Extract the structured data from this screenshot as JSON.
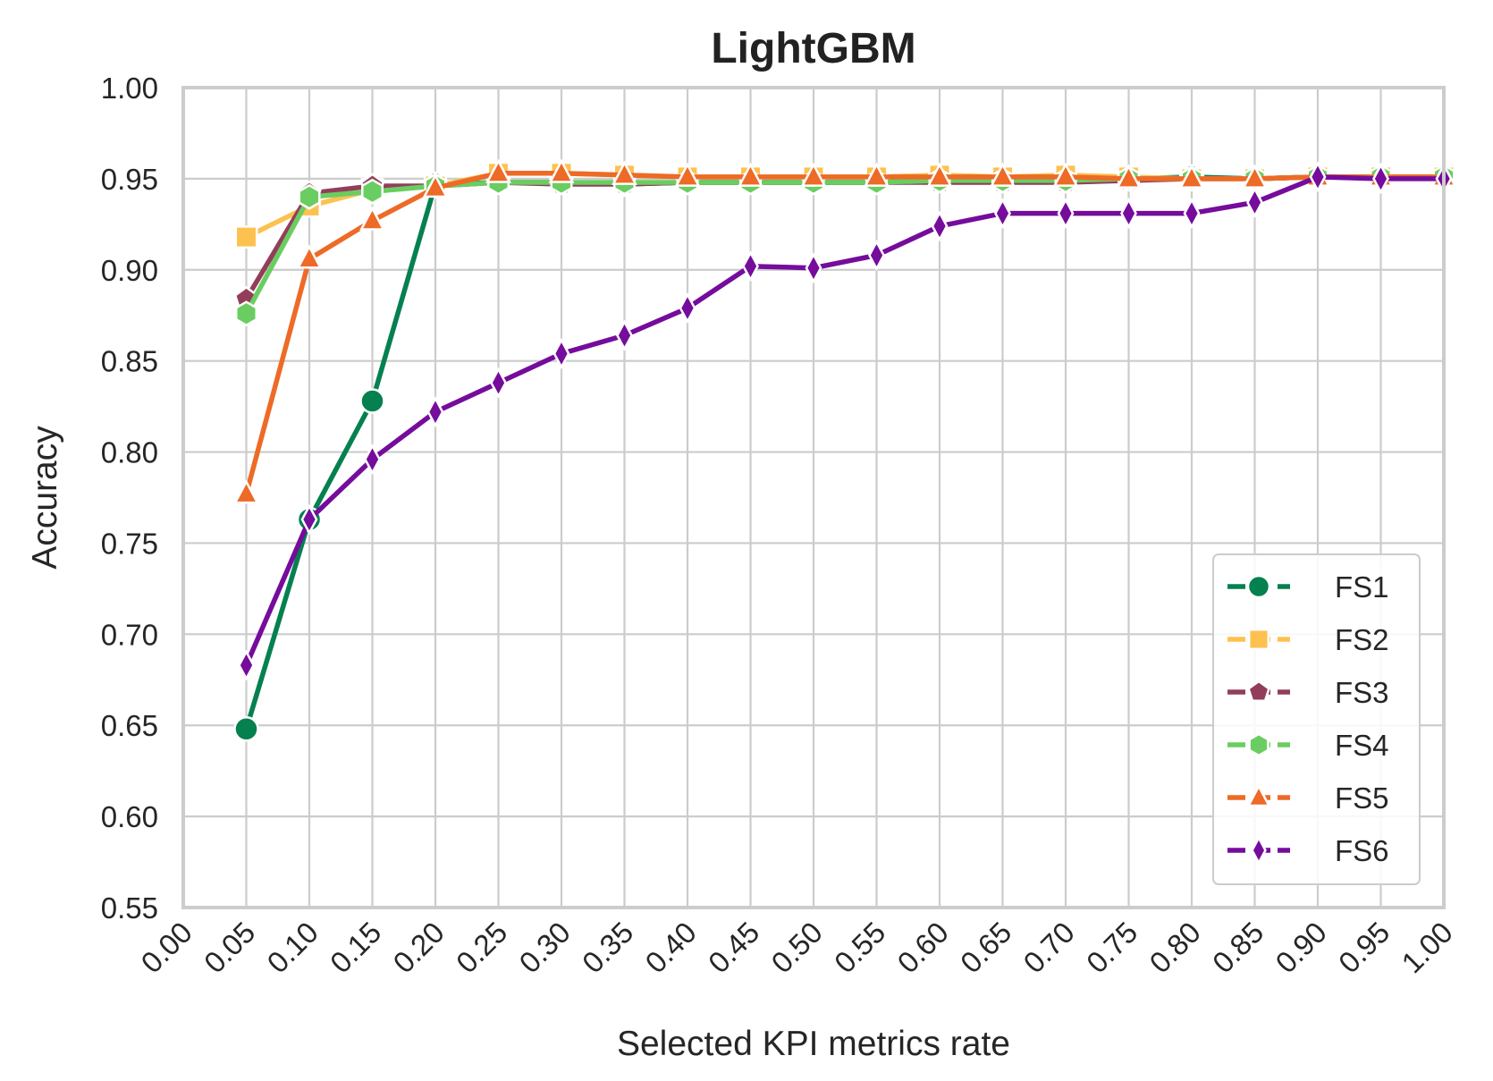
{
  "chart_data": {
    "type": "line",
    "title": "LightGBM",
    "xlabel": "Selected KPI metrics rate",
    "ylabel": "Accuracy",
    "xlim": [
      0.0,
      1.0
    ],
    "ylim": [
      0.55,
      1.0
    ],
    "x_ticks": [
      "0.00",
      "0.05",
      "0.10",
      "0.15",
      "0.20",
      "0.25",
      "0.30",
      "0.35",
      "0.40",
      "0.45",
      "0.50",
      "0.55",
      "0.60",
      "0.65",
      "0.70",
      "0.75",
      "0.80",
      "0.85",
      "0.90",
      "0.95",
      "1.00"
    ],
    "y_ticks": [
      "0.55",
      "0.60",
      "0.65",
      "0.70",
      "0.75",
      "0.80",
      "0.85",
      "0.90",
      "0.95",
      "1.00"
    ],
    "grid": true,
    "legend_position": "lower-right",
    "x": [
      0.05,
      0.1,
      0.15,
      0.2,
      0.25,
      0.3,
      0.35,
      0.4,
      0.45,
      0.5,
      0.55,
      0.6,
      0.65,
      0.7,
      0.75,
      0.8,
      0.85,
      0.9,
      0.95,
      1.0
    ],
    "series": [
      {
        "name": "FS1",
        "color": "#05804f",
        "marker": "circle",
        "values": [
          0.648,
          0.763,
          0.828,
          0.947,
          0.948,
          0.948,
          0.947,
          0.948,
          0.948,
          0.948,
          0.948,
          0.949,
          0.949,
          0.949,
          0.95,
          0.951,
          0.95,
          0.951,
          0.951,
          0.951
        ]
      },
      {
        "name": "FS2",
        "color": "#fdc150",
        "marker": "square",
        "values": [
          0.918,
          0.935,
          0.944,
          0.946,
          0.953,
          0.953,
          0.952,
          0.951,
          0.951,
          0.951,
          0.951,
          0.952,
          0.951,
          0.952,
          0.951,
          0.95,
          0.95,
          0.951,
          0.951,
          0.951
        ]
      },
      {
        "name": "FS3",
        "color": "#923e5b",
        "marker": "pentagon",
        "values": [
          0.884,
          0.942,
          0.946,
          0.946,
          0.948,
          0.947,
          0.947,
          0.948,
          0.948,
          0.948,
          0.948,
          0.948,
          0.948,
          0.948,
          0.949,
          0.95,
          0.95,
          0.951,
          0.951,
          0.951
        ]
      },
      {
        "name": "FS4",
        "color": "#6acd61",
        "marker": "hexagon",
        "values": [
          0.876,
          0.94,
          0.943,
          0.946,
          0.948,
          0.948,
          0.948,
          0.948,
          0.948,
          0.948,
          0.948,
          0.949,
          0.949,
          0.949,
          0.95,
          0.95,
          0.95,
          0.951,
          0.951,
          0.951
        ]
      },
      {
        "name": "FS5",
        "color": "#ed6a27",
        "marker": "triangle",
        "values": [
          0.777,
          0.906,
          0.927,
          0.945,
          0.953,
          0.953,
          0.952,
          0.951,
          0.951,
          0.951,
          0.951,
          0.951,
          0.951,
          0.951,
          0.95,
          0.95,
          0.95,
          0.951,
          0.951,
          0.951
        ]
      },
      {
        "name": "FS6",
        "color": "#750c9c",
        "marker": "thin_diamond",
        "values": [
          0.683,
          0.763,
          0.796,
          0.822,
          0.838,
          0.854,
          0.864,
          0.879,
          0.902,
          0.901,
          0.908,
          0.924,
          0.931,
          0.931,
          0.931,
          0.931,
          0.937,
          0.951,
          0.95,
          0.95
        ]
      }
    ]
  }
}
